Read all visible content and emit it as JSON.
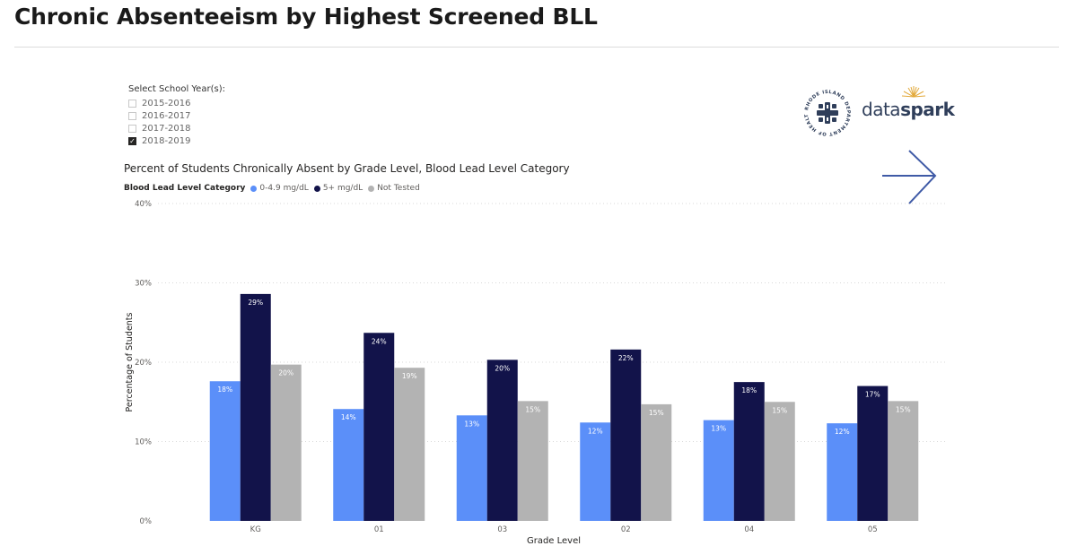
{
  "page": {
    "title": "Chronic Absenteeism by Highest Screened BLL"
  },
  "slicer": {
    "title": "Select School Year(s):",
    "items": [
      {
        "label": "2015-2016",
        "checked": false
      },
      {
        "label": "2016-2017",
        "checked": false
      },
      {
        "label": "2017-2018",
        "checked": false
      },
      {
        "label": "2018-2019",
        "checked": true
      }
    ]
  },
  "logos": {
    "ri_doh": "RHODE ISLAND DEPARTMENT OF HEALTH",
    "dataspark_light": "data",
    "dataspark_bold": "spark"
  },
  "icons": {
    "next": "arrow-right-icon"
  },
  "chart_data": {
    "type": "bar",
    "title": "Percent of Students Chronically Absent by Grade Level, Blood Lead Level Category",
    "legend_title": "Blood Lead Level Category",
    "legend_position": "top-left",
    "xlabel": "Grade Level",
    "ylabel": "Percentage of Students",
    "ylim": [
      0,
      40
    ],
    "yticks": [
      0,
      10,
      20,
      30,
      40
    ],
    "ytick_labels": [
      "0%",
      "10%",
      "20%",
      "30%",
      "40%"
    ],
    "grid": true,
    "categories": [
      "KG",
      "01",
      "03",
      "02",
      "04",
      "05"
    ],
    "series": [
      {
        "name": "0-4.9 mg/dL",
        "color": "#5b8ff9",
        "values": [
          17.6,
          14.1,
          13.3,
          12.4,
          12.7,
          12.3
        ],
        "labels": [
          "18%",
          "14%",
          "13%",
          "12%",
          "13%",
          "12%"
        ]
      },
      {
        "name": "5+ mg/dL",
        "color": "#12134a",
        "values": [
          28.6,
          23.7,
          20.3,
          21.6,
          17.5,
          17.0
        ],
        "labels": [
          "29%",
          "24%",
          "20%",
          "22%",
          "18%",
          "17%"
        ]
      },
      {
        "name": "Not Tested",
        "color": "#b3b3b3",
        "values": [
          19.7,
          19.3,
          15.1,
          14.7,
          15.0,
          15.1
        ],
        "labels": [
          "20%",
          "19%",
          "15%",
          "15%",
          "15%",
          "15%"
        ]
      }
    ]
  }
}
